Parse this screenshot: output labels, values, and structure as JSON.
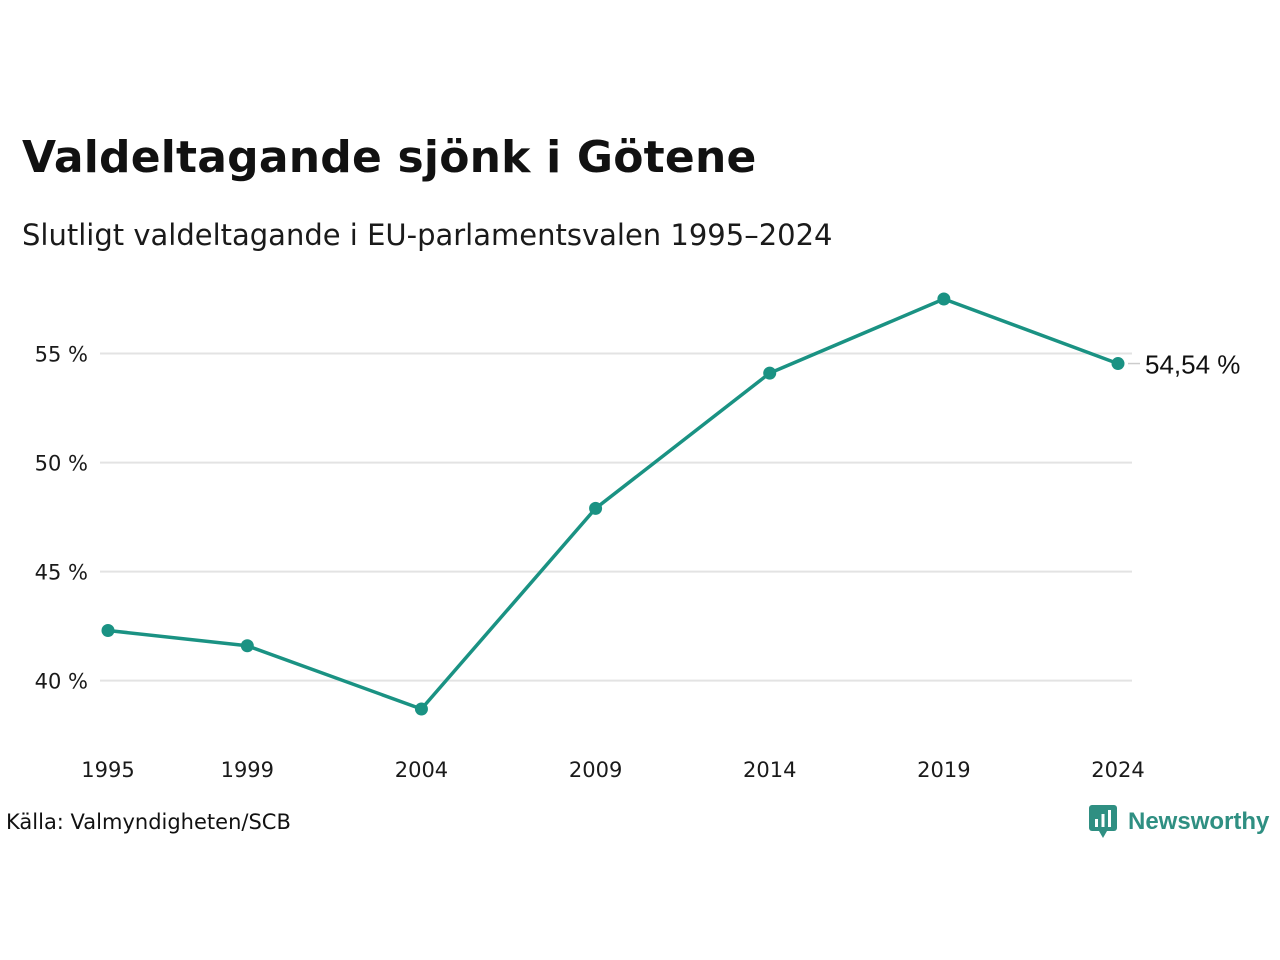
{
  "header": {
    "title": "Valdeltagande sjönk i Götene",
    "subtitle": "Slutligt valdeltagande i EU-parlamentsvalen 1995–2024"
  },
  "footer": {
    "source": "Källa: Valmyndigheten/SCB",
    "brand": "Newsworthy",
    "brand_icon": "newsworthy-logo-icon"
  },
  "colors": {
    "line": "#1a9283",
    "grid": "#e3e3e3",
    "brand": "#2f8f82"
  },
  "chart_data": {
    "type": "line",
    "title": "Valdeltagande sjönk i Götene",
    "subtitle": "Slutligt valdeltagande i EU-parlamentsvalen 1995–2024",
    "categories": [
      "1995",
      "1999",
      "2004",
      "2009",
      "2014",
      "2019",
      "2024"
    ],
    "x": [
      1995,
      1999,
      2004,
      2009,
      2014,
      2019,
      2024
    ],
    "series": [
      {
        "values": [
          42.3,
          41.6,
          38.7,
          47.9,
          54.1,
          57.5,
          54.54
        ]
      }
    ],
    "yticks": [
      40,
      45,
      50,
      55
    ],
    "ytick_labels": [
      "40 %",
      "45 %",
      "50 %",
      "55 %"
    ],
    "ylim": [
      38.7,
      57.5
    ],
    "end_label": "54,54 %",
    "grid": "horizontal",
    "legend": "none"
  }
}
